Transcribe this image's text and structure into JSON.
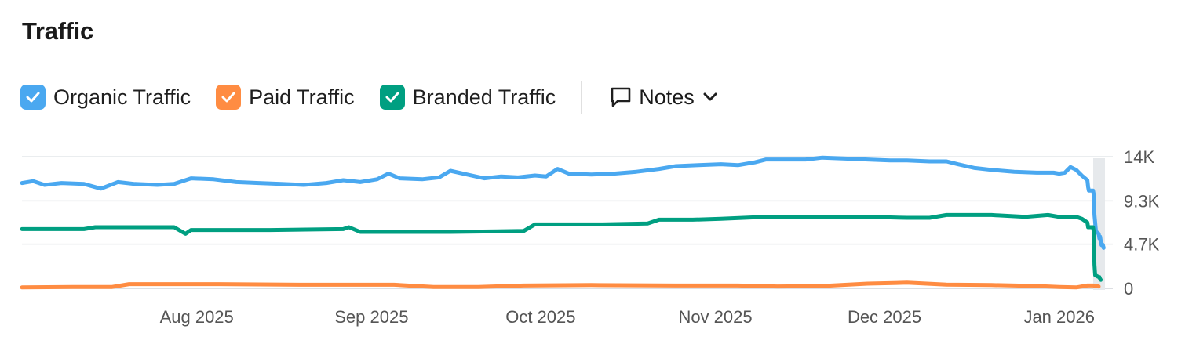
{
  "header": {
    "title": "Traffic"
  },
  "legend": {
    "items": [
      {
        "key": "organic",
        "label": "Organic Traffic",
        "color": "#4aa8f0",
        "checked": true
      },
      {
        "key": "paid",
        "label": "Paid Traffic",
        "color": "#ff8c42",
        "checked": true
      },
      {
        "key": "branded",
        "label": "Branded Traffic",
        "color": "#009f81",
        "checked": true
      }
    ],
    "notes": {
      "label": "Notes",
      "icon": "comment-icon",
      "caret_icon": "chevron-down-icon"
    }
  },
  "chart_data": {
    "type": "line",
    "title": "",
    "xlabel": "",
    "ylabel": "",
    "x_range": [
      "2025-07-01",
      "2026-01-08"
    ],
    "ylim": [
      0,
      14000
    ],
    "y_ticks": [
      {
        "value": 14000,
        "label": "14K"
      },
      {
        "value": 9300,
        "label": "9.3K"
      },
      {
        "value": 4700,
        "label": "4.7K"
      },
      {
        "value": 0,
        "label": "0"
      }
    ],
    "x_ticks": [
      {
        "date": "2025-08-01",
        "label": "Aug 2025"
      },
      {
        "date": "2025-09-01",
        "label": "Sep 2025"
      },
      {
        "date": "2025-10-01",
        "label": "Oct 2025"
      },
      {
        "date": "2025-11-01",
        "label": "Nov 2025"
      },
      {
        "date": "2025-12-01",
        "label": "Dec 2025"
      },
      {
        "date": "2026-01-01",
        "label": "Jan 2026"
      }
    ],
    "grid": true,
    "series": [
      {
        "name": "Organic Traffic",
        "color": "#4aa8f0",
        "points": [
          [
            "2025-07-01",
            11200
          ],
          [
            "2025-07-03",
            11400
          ],
          [
            "2025-07-05",
            11000
          ],
          [
            "2025-07-08",
            11200
          ],
          [
            "2025-07-12",
            11100
          ],
          [
            "2025-07-15",
            10600
          ],
          [
            "2025-07-18",
            11300
          ],
          [
            "2025-07-21",
            11100
          ],
          [
            "2025-07-25",
            11000
          ],
          [
            "2025-07-28",
            11100
          ],
          [
            "2025-07-31",
            11700
          ],
          [
            "2025-08-04",
            11600
          ],
          [
            "2025-08-08",
            11300
          ],
          [
            "2025-08-12",
            11200
          ],
          [
            "2025-08-16",
            11100
          ],
          [
            "2025-08-20",
            11000
          ],
          [
            "2025-08-24",
            11200
          ],
          [
            "2025-08-27",
            11500
          ],
          [
            "2025-08-30",
            11300
          ],
          [
            "2025-09-02",
            11600
          ],
          [
            "2025-09-04",
            12200
          ],
          [
            "2025-09-06",
            11700
          ],
          [
            "2025-09-10",
            11600
          ],
          [
            "2025-09-13",
            11800
          ],
          [
            "2025-09-15",
            12500
          ],
          [
            "2025-09-18",
            12100
          ],
          [
            "2025-09-21",
            11700
          ],
          [
            "2025-09-24",
            11900
          ],
          [
            "2025-09-27",
            11800
          ],
          [
            "2025-09-30",
            12000
          ],
          [
            "2025-10-02",
            11900
          ],
          [
            "2025-10-04",
            12700
          ],
          [
            "2025-10-06",
            12200
          ],
          [
            "2025-10-10",
            12100
          ],
          [
            "2025-10-14",
            12200
          ],
          [
            "2025-10-18",
            12400
          ],
          [
            "2025-10-22",
            12700
          ],
          [
            "2025-10-25",
            13000
          ],
          [
            "2025-10-29",
            13100
          ],
          [
            "2025-11-02",
            13200
          ],
          [
            "2025-11-05",
            13100
          ],
          [
            "2025-11-08",
            13400
          ],
          [
            "2025-11-10",
            13700
          ],
          [
            "2025-11-13",
            13700
          ],
          [
            "2025-11-17",
            13700
          ],
          [
            "2025-11-20",
            13900
          ],
          [
            "2025-11-24",
            13800
          ],
          [
            "2025-11-28",
            13700
          ],
          [
            "2025-12-02",
            13600
          ],
          [
            "2025-12-05",
            13600
          ],
          [
            "2025-12-09",
            13500
          ],
          [
            "2025-12-12",
            13500
          ],
          [
            "2025-12-14",
            13200
          ],
          [
            "2025-12-17",
            12800
          ],
          [
            "2025-12-20",
            12600
          ],
          [
            "2025-12-24",
            12400
          ],
          [
            "2025-12-28",
            12300
          ],
          [
            "2025-12-31",
            12300
          ],
          [
            "2026-01-01",
            12200
          ],
          [
            "2026-01-02",
            12300
          ],
          [
            "2026-01-03",
            12900
          ],
          [
            "2026-01-04",
            12600
          ],
          [
            "2026-01-05",
            12000
          ],
          [
            "2026-01-06",
            11500
          ],
          [
            "2026-01-06",
            10800
          ],
          [
            "2026-01-06",
            10400
          ],
          [
            "2026-01-07",
            10400
          ],
          [
            "2026-01-07",
            10000
          ],
          [
            "2026-01-07",
            7800
          ],
          [
            "2026-01-07",
            7000
          ],
          [
            "2026-01-07",
            6200
          ],
          [
            "2026-01-07",
            6000
          ],
          [
            "2026-01-08",
            5800
          ],
          [
            "2026-01-08",
            5300
          ],
          [
            "2026-01-08",
            5500
          ],
          [
            "2026-01-08",
            5000
          ],
          [
            "2026-01-08",
            4600
          ],
          [
            "2026-01-08",
            4700
          ],
          [
            "2026-01-08",
            4600
          ],
          [
            "2026-01-08",
            4300
          ]
        ]
      },
      {
        "name": "Paid Traffic",
        "color": "#ff8c42",
        "points": [
          [
            "2025-07-01",
            100
          ],
          [
            "2025-07-10",
            150
          ],
          [
            "2025-07-17",
            150
          ],
          [
            "2025-07-20",
            450
          ],
          [
            "2025-08-05",
            450
          ],
          [
            "2025-08-20",
            380
          ],
          [
            "2025-09-05",
            380
          ],
          [
            "2025-09-12",
            150
          ],
          [
            "2025-09-20",
            150
          ],
          [
            "2025-09-28",
            300
          ],
          [
            "2025-10-10",
            350
          ],
          [
            "2025-10-25",
            300
          ],
          [
            "2025-11-05",
            300
          ],
          [
            "2025-11-12",
            200
          ],
          [
            "2025-11-20",
            250
          ],
          [
            "2025-11-28",
            500
          ],
          [
            "2025-12-05",
            600
          ],
          [
            "2025-12-12",
            400
          ],
          [
            "2025-12-20",
            350
          ],
          [
            "2025-12-28",
            250
          ],
          [
            "2026-01-01",
            150
          ],
          [
            "2026-01-04",
            100
          ],
          [
            "2026-01-05",
            200
          ],
          [
            "2026-01-06",
            300
          ],
          [
            "2026-01-07",
            300
          ],
          [
            "2026-01-08",
            200
          ]
        ]
      },
      {
        "name": "Branded Traffic",
        "color": "#009f81",
        "points": [
          [
            "2025-07-01",
            6300
          ],
          [
            "2025-07-12",
            6300
          ],
          [
            "2025-07-14",
            6500
          ],
          [
            "2025-07-28",
            6500
          ],
          [
            "2025-07-30",
            5800
          ],
          [
            "2025-07-31",
            6200
          ],
          [
            "2025-08-14",
            6200
          ],
          [
            "2025-08-27",
            6300
          ],
          [
            "2025-08-28",
            6500
          ],
          [
            "2025-08-30",
            6000
          ],
          [
            "2025-09-15",
            6000
          ],
          [
            "2025-09-28",
            6100
          ],
          [
            "2025-09-30",
            6800
          ],
          [
            "2025-10-10",
            6800
          ],
          [
            "2025-10-12",
            6800
          ],
          [
            "2025-10-20",
            6900
          ],
          [
            "2025-10-22",
            7300
          ],
          [
            "2025-10-28",
            7300
          ],
          [
            "2025-11-02",
            7400
          ],
          [
            "2025-11-10",
            7600
          ],
          [
            "2025-11-20",
            7600
          ],
          [
            "2025-11-28",
            7600
          ],
          [
            "2025-12-05",
            7500
          ],
          [
            "2025-12-09",
            7500
          ],
          [
            "2025-12-12",
            7800
          ],
          [
            "2025-12-20",
            7800
          ],
          [
            "2025-12-26",
            7600
          ],
          [
            "2025-12-30",
            7800
          ],
          [
            "2026-01-01",
            7600
          ],
          [
            "2026-01-02",
            7600
          ],
          [
            "2026-01-03",
            7600
          ],
          [
            "2026-01-04",
            7600
          ],
          [
            "2026-01-05",
            7400
          ],
          [
            "2026-01-06",
            7000
          ],
          [
            "2026-01-06",
            6500
          ],
          [
            "2026-01-07",
            6500
          ],
          [
            "2026-01-07",
            6000
          ],
          [
            "2026-01-07",
            2500
          ],
          [
            "2026-01-07",
            1400
          ],
          [
            "2026-01-08",
            1200
          ],
          [
            "2026-01-08",
            1200
          ],
          [
            "2026-01-08",
            1000
          ],
          [
            "2026-01-08",
            900
          ]
        ]
      }
    ]
  }
}
